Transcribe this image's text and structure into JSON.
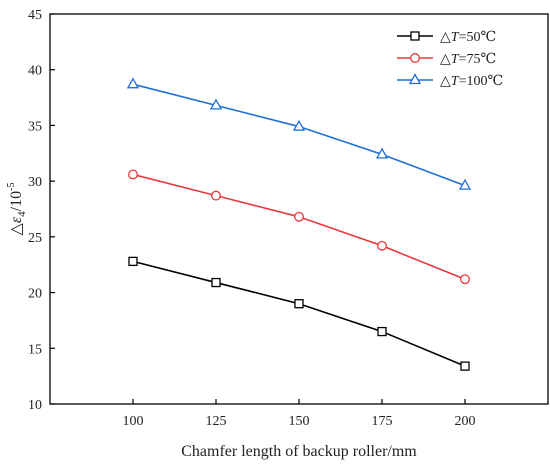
{
  "chart_data": {
    "type": "line",
    "title": "",
    "xlabel": "Chamfer length of backup roller/mm",
    "ylabel": {
      "prefix": "△ε",
      "subscript": "4",
      "unit_base": "/10",
      "unit_exponent": "-5"
    },
    "x": [
      100,
      125,
      150,
      175,
      200
    ],
    "x_ticks": [
      "100",
      "125",
      "150",
      "175",
      "200"
    ],
    "xlim": [
      75,
      225
    ],
    "ylim": [
      10,
      45
    ],
    "y_ticks": [
      "10",
      "15",
      "20",
      "25",
      "30",
      "35",
      "40",
      "45"
    ],
    "grid": false,
    "legend_position": "top-right",
    "series": [
      {
        "name": "△T=50℃",
        "legend_prefix": "△",
        "legend_var": "T",
        "legend_suffix": "=50℃",
        "marker": "square",
        "color": "#000000",
        "values": [
          22.8,
          20.9,
          19.0,
          16.5,
          13.4
        ]
      },
      {
        "name": "△T=75℃",
        "legend_prefix": "△",
        "legend_var": "T",
        "legend_suffix": "=75℃",
        "marker": "circle",
        "color": "#e8383d",
        "values": [
          30.6,
          28.7,
          26.8,
          24.2,
          21.2
        ]
      },
      {
        "name": "△T=100℃",
        "legend_prefix": "△",
        "legend_var": "T",
        "legend_suffix": "=100℃",
        "marker": "triangle",
        "color": "#1f6fd8",
        "values": [
          38.7,
          36.8,
          34.9,
          32.4,
          29.6
        ]
      }
    ]
  }
}
